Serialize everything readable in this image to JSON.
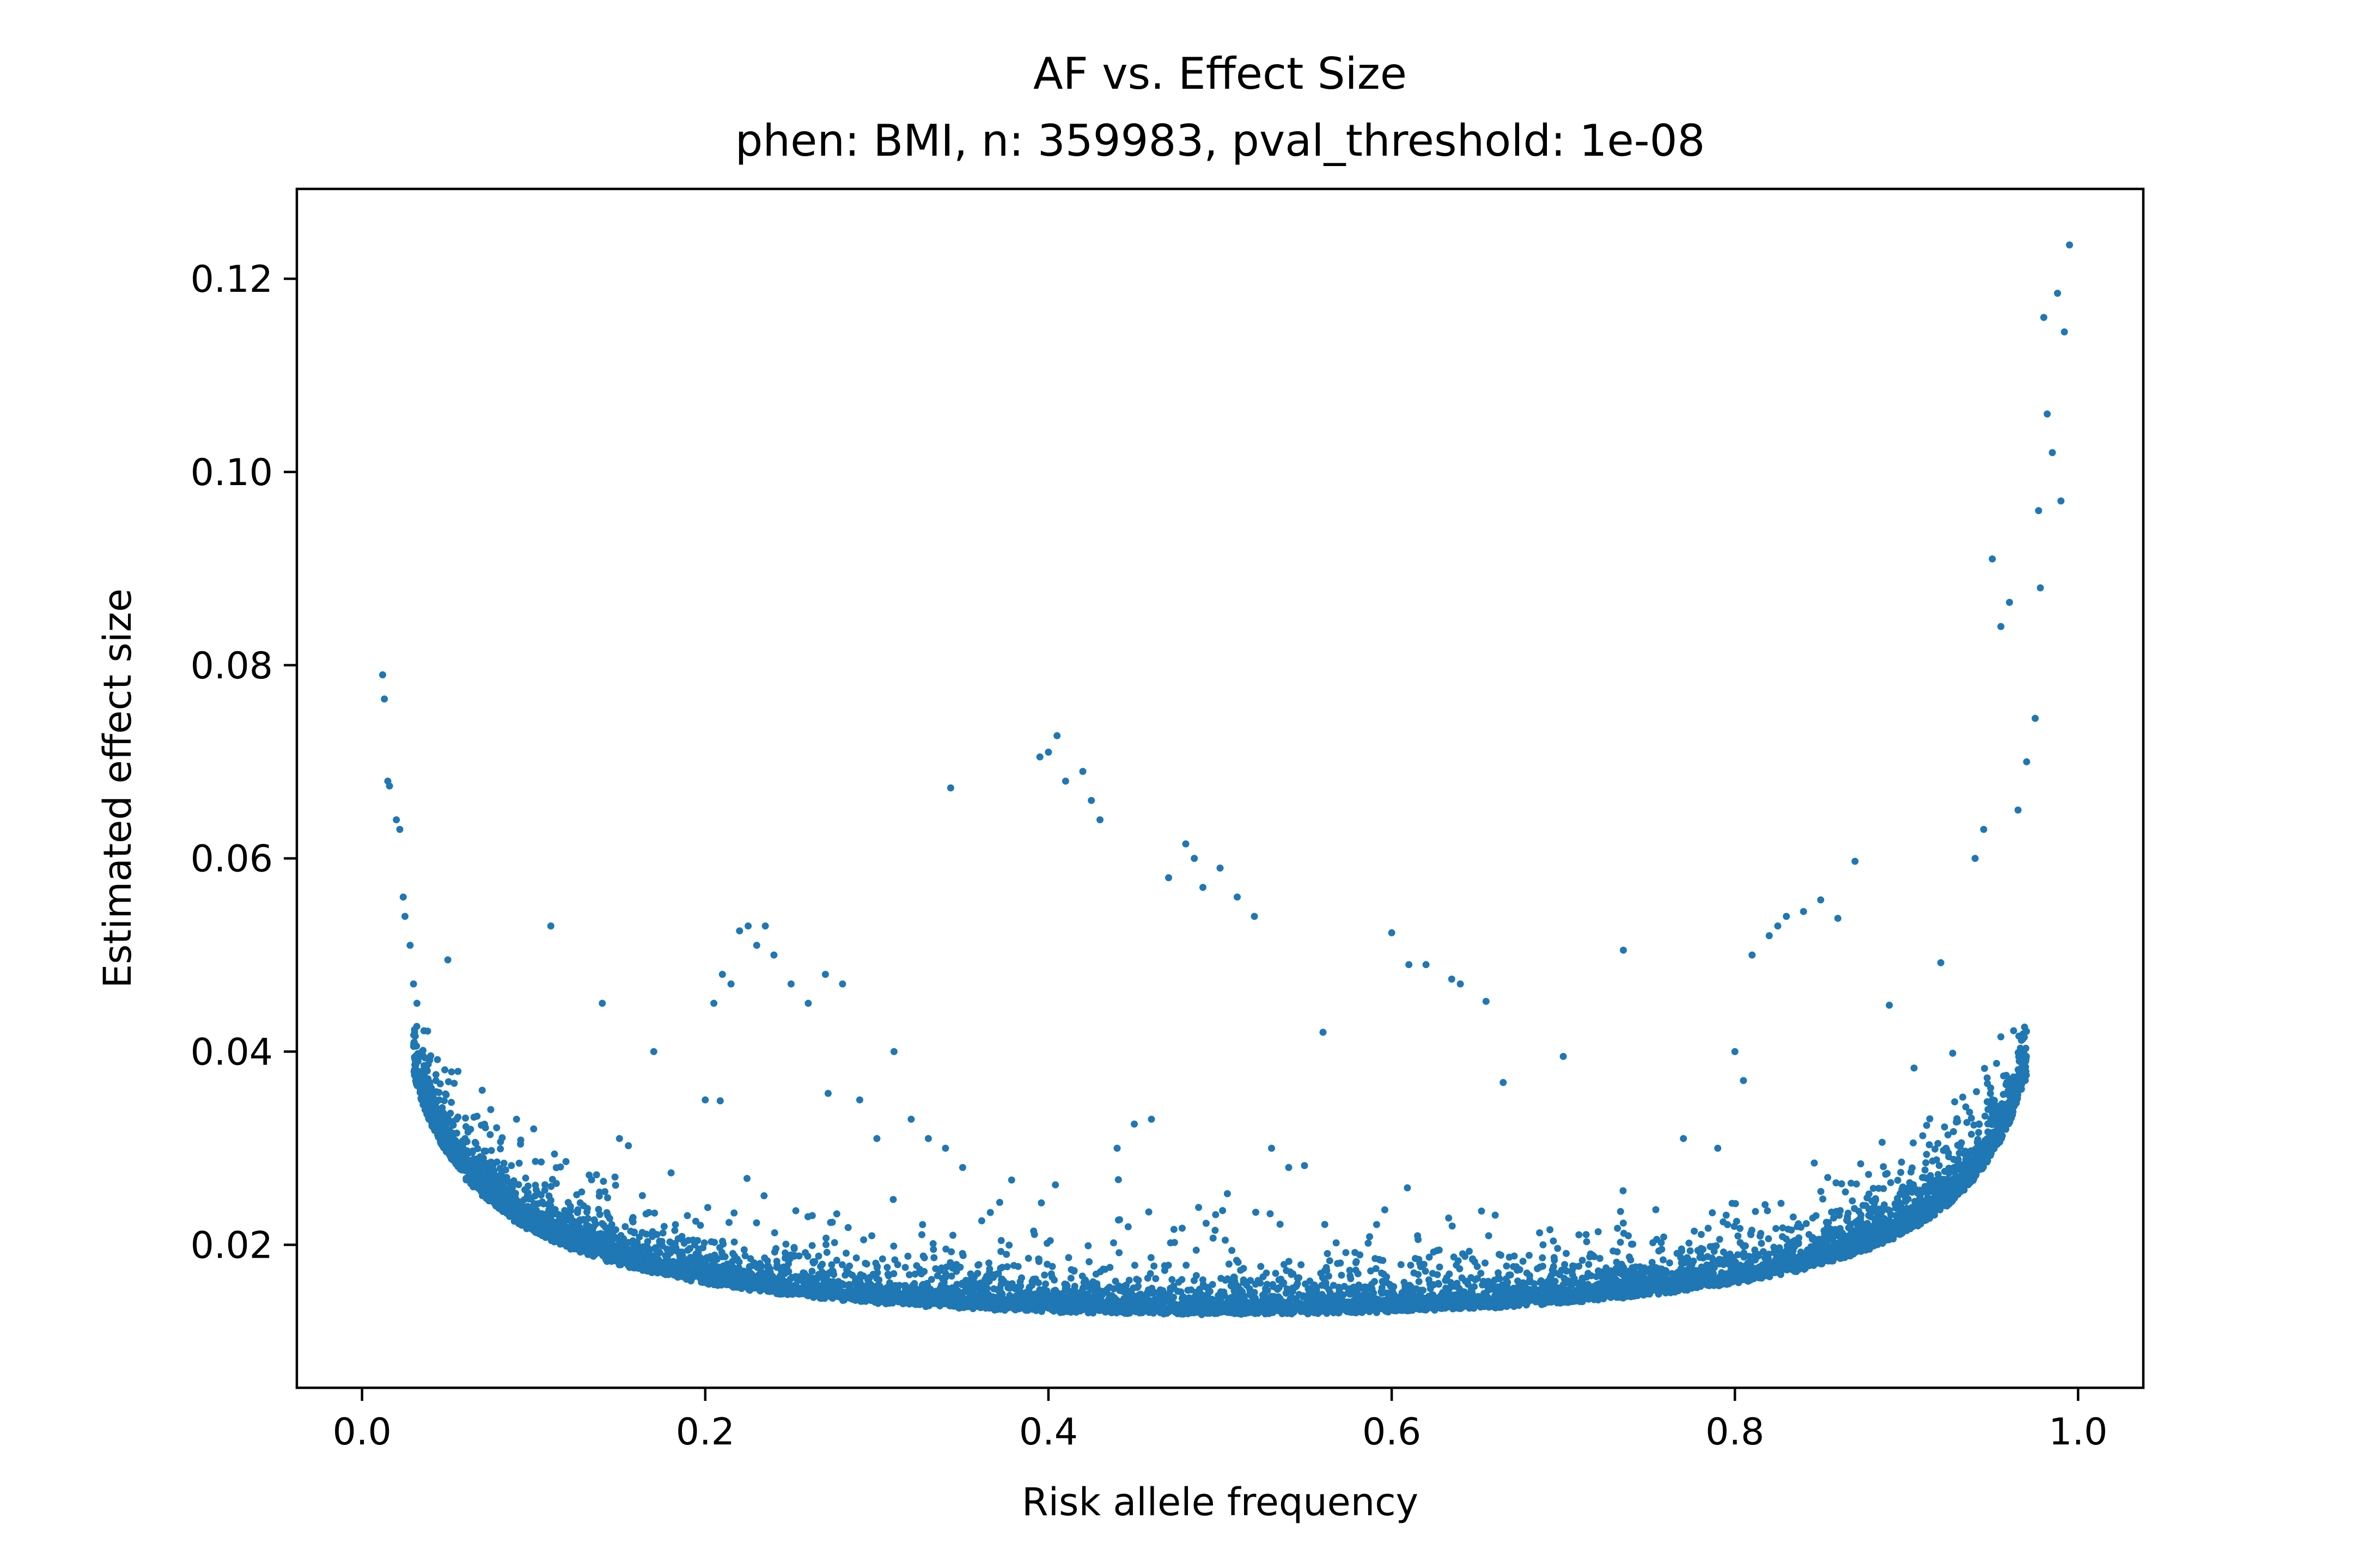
{
  "chart_data": {
    "type": "scatter",
    "title": "AF vs. Effect Size",
    "subtitle": "phen: BMI, n: 359983, pval_threshold: 1e-08",
    "xlabel": "Risk allele frequency",
    "ylabel": "Estimated effect size",
    "xlim": [
      -0.038,
      1.038
    ],
    "ylim": [
      0.0052,
      0.1293
    ],
    "xticks": [
      0.0,
      0.2,
      0.4,
      0.6,
      0.8,
      1.0
    ],
    "xtick_labels": [
      "0.0",
      "0.2",
      "0.4",
      "0.6",
      "0.8",
      "1.0"
    ],
    "yticks": [
      0.02,
      0.04,
      0.06,
      0.08,
      0.1,
      0.12
    ],
    "ytick_labels": [
      "0.02",
      "0.04",
      "0.06",
      "0.08",
      "0.10",
      "0.12"
    ],
    "grid": false,
    "legend": "none",
    "marker_color": "#1f77b4",
    "background_bulk_note": "dense band of variants near the detection threshold curve, from about 0.013 at AF 0.5 rising toward both ends",
    "points": {
      "x": [
        0.012,
        0.013,
        0.015,
        0.016,
        0.02,
        0.022,
        0.024,
        0.025,
        0.028,
        0.03,
        0.032,
        0.035,
        0.038,
        0.04,
        0.045,
        0.05,
        0.055,
        0.06,
        0.07,
        0.075,
        0.09,
        0.1,
        0.11,
        0.14,
        0.15,
        0.17,
        0.2,
        0.205,
        0.21,
        0.215,
        0.22,
        0.225,
        0.23,
        0.235,
        0.24,
        0.25,
        0.26,
        0.27,
        0.28,
        0.29,
        0.3,
        0.31,
        0.32,
        0.33,
        0.34,
        0.343,
        0.35,
        0.395,
        0.4,
        0.405,
        0.41,
        0.42,
        0.425,
        0.43,
        0.44,
        0.45,
        0.46,
        0.47,
        0.48,
        0.485,
        0.49,
        0.5,
        0.51,
        0.52,
        0.53,
        0.54,
        0.56,
        0.6,
        0.61,
        0.62,
        0.635,
        0.64,
        0.655,
        0.665,
        0.7,
        0.735,
        0.77,
        0.79,
        0.8,
        0.805,
        0.81,
        0.82,
        0.825,
        0.83,
        0.84,
        0.85,
        0.86,
        0.87,
        0.89,
        0.92,
        0.94,
        0.945,
        0.95,
        0.955,
        0.96,
        0.965,
        0.97,
        0.975,
        0.977,
        0.978,
        0.98,
        0.982,
        0.985,
        0.988,
        0.99,
        0.992,
        0.995
      ],
      "y": [
        0.079,
        0.0765,
        0.068,
        0.0675,
        0.064,
        0.063,
        0.056,
        0.054,
        0.051,
        0.047,
        0.045,
        0.04,
        0.038,
        0.036,
        0.035,
        0.0495,
        0.033,
        0.031,
        0.036,
        0.034,
        0.033,
        0.032,
        0.053,
        0.045,
        0.031,
        0.04,
        0.035,
        0.045,
        0.048,
        0.047,
        0.0525,
        0.053,
        0.051,
        0.053,
        0.05,
        0.047,
        0.045,
        0.048,
        0.047,
        0.035,
        0.031,
        0.04,
        0.033,
        0.031,
        0.03,
        0.0673,
        0.028,
        0.0705,
        0.071,
        0.0727,
        0.068,
        0.069,
        0.066,
        0.064,
        0.03,
        0.0325,
        0.033,
        0.058,
        0.0615,
        0.06,
        0.057,
        0.059,
        0.056,
        0.054,
        0.03,
        0.028,
        0.042,
        0.0523,
        0.049,
        0.049,
        0.0475,
        0.047,
        0.0452,
        0.0368,
        0.0395,
        0.0505,
        0.031,
        0.03,
        0.04,
        0.037,
        0.05,
        0.052,
        0.053,
        0.054,
        0.0545,
        0.0557,
        0.0538,
        0.0597,
        0.0448,
        0.0492,
        0.06,
        0.063,
        0.091,
        0.084,
        0.0865,
        0.065,
        0.07,
        0.0745,
        0.096,
        0.088,
        0.116,
        0.106,
        0.102,
        0.1185,
        0.097,
        0.1145,
        0.1235
      ]
    }
  }
}
